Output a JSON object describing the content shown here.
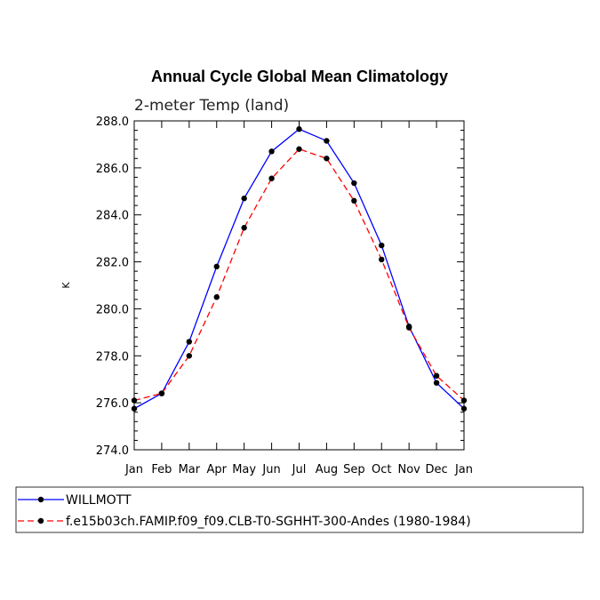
{
  "chart_data": {
    "type": "line",
    "title": "Annual Cycle Global Mean Climatology",
    "subtitle": "2-meter Temp (land)",
    "xlabel": "",
    "ylabel": "K",
    "categories": [
      "Jan",
      "Feb",
      "Mar",
      "Apr",
      "May",
      "Jun",
      "Jul",
      "Aug",
      "Sep",
      "Oct",
      "Nov",
      "Dec",
      "Jan"
    ],
    "ylim": [
      274.0,
      288.0
    ],
    "yticks": [
      "274.0",
      "276.0",
      "278.0",
      "280.0",
      "282.0",
      "284.0",
      "286.0",
      "288.0"
    ],
    "ytick_values": [
      274.0,
      276.0,
      278.0,
      280.0,
      282.0,
      284.0,
      286.0,
      288.0
    ],
    "grid": false,
    "legend_position": "bottom",
    "series": [
      {
        "name": "WILLMOTT",
        "color": "#0000ff",
        "line_style": "solid",
        "marker": "filled-circle",
        "values": [
          275.75,
          276.4,
          278.6,
          281.8,
          284.7,
          286.7,
          287.65,
          287.15,
          285.35,
          282.7,
          279.25,
          276.85,
          275.75
        ]
      },
      {
        "name": "f.e15b03ch.FAMIP.f09_f09.CLB-T0-SGHHT-300-Andes (1980-1984)",
        "color": "#ff0000",
        "line_style": "dashed",
        "marker": "filled-circle",
        "values": [
          276.1,
          276.4,
          278.0,
          280.5,
          283.45,
          285.55,
          286.8,
          286.4,
          284.6,
          282.1,
          279.2,
          277.15,
          276.1
        ]
      }
    ]
  }
}
